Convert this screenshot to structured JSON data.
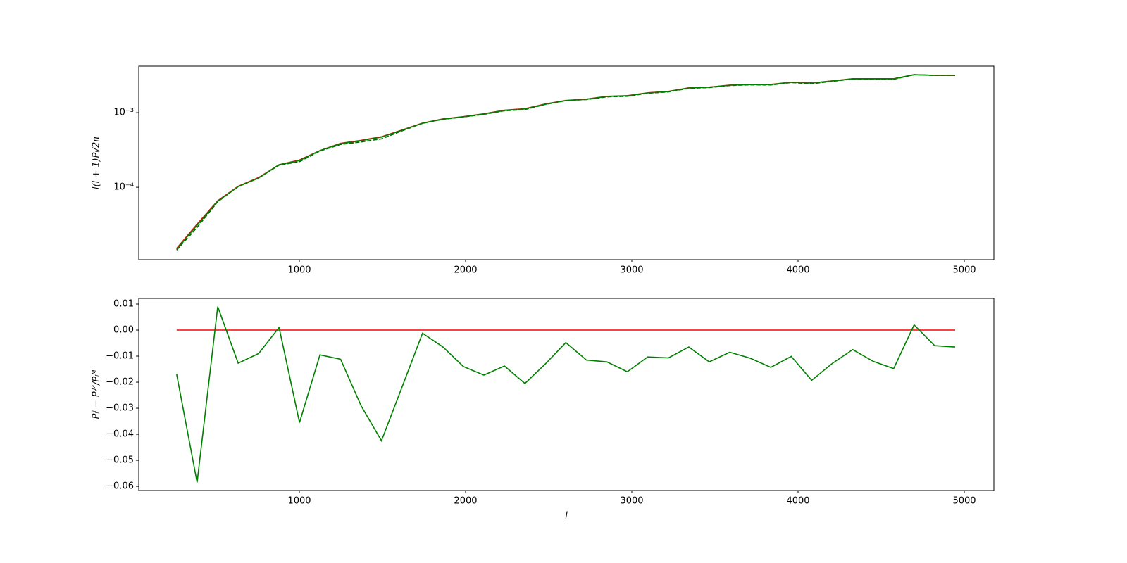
{
  "chart_data": [
    {
      "type": "line",
      "ylabel": "l(l + 1)Pₗ/2π",
      "log_y": true,
      "x": [
        262,
        385,
        509,
        632,
        755,
        878,
        1001,
        1124,
        1248,
        1371,
        1494,
        1617,
        1741,
        1864,
        1987,
        2110,
        2234,
        2357,
        2480,
        2603,
        2727,
        2850,
        2973,
        3096,
        3220,
        3343,
        3466,
        3589,
        3713,
        3836,
        3959,
        4082,
        4206,
        4329,
        4452,
        4575,
        4698,
        4822,
        4945
      ],
      "xlim": [
        34,
        5178
      ],
      "xticks": [
        1000,
        2000,
        3000,
        4000,
        5000
      ],
      "ylim": [
        1.07e-05,
        0.0042
      ],
      "yticks": [
        {
          "value": 0.0001,
          "label": "10⁻⁴"
        },
        {
          "value": 0.001,
          "label": "10⁻³"
        }
      ],
      "series": [
        {
          "color": "#ff0000",
          "linestyle": "solid",
          "values": [
            1.52e-05,
            3.2e-05,
            6.6e-05,
            0.000103,
            0.000135,
            0.0002,
            0.000232,
            0.00031,
            0.000388,
            0.000425,
            0.000475,
            0.000585,
            0.000725,
            0.000825,
            0.000885,
            0.000965,
            0.00108,
            0.00113,
            0.00131,
            0.00146,
            0.00152,
            0.00166,
            0.00169,
            0.00185,
            0.00193,
            0.00215,
            0.0022,
            0.00234,
            0.00239,
            0.00239,
            0.00256,
            0.0025,
            0.00267,
            0.00285,
            0.00285,
            0.00285,
            0.00322,
            0.00317,
            0.00317
          ]
        },
        {
          "color": "#006400",
          "linestyle": "dashed",
          "values": [
            1.44e-05,
            2.9e-05,
            6.4e-05,
            0.000102,
            0.000133,
            0.000198,
            0.00022,
            0.000306,
            0.000375,
            0.000405,
            0.000445,
            0.00057,
            0.00072,
            0.000815,
            0.000875,
            0.00095,
            0.00106,
            0.0011,
            0.00129,
            0.00145,
            0.0015,
            0.00163,
            0.00166,
            0.00182,
            0.0019,
            0.00212,
            0.00217,
            0.00231,
            0.00236,
            0.00235,
            0.00253,
            0.00244,
            0.00263,
            0.00282,
            0.00281,
            0.0028,
            0.00323,
            0.00315,
            0.00315
          ]
        },
        {
          "color": "#008000",
          "linestyle": "solid",
          "values": [
            1.48e-05,
            3.1e-05,
            6.5e-05,
            0.000102,
            0.000133,
            0.0002,
            0.000228,
            0.00031,
            0.000385,
            0.00042,
            0.00047,
            0.00058,
            0.00072,
            0.00082,
            0.00088,
            0.00096,
            0.00107,
            0.00112,
            0.0013,
            0.00145,
            0.00151,
            0.00165,
            0.00168,
            0.00184,
            0.00192,
            0.00214,
            0.00219,
            0.00233,
            0.00238,
            0.00238,
            0.00255,
            0.00249,
            0.00266,
            0.00284,
            0.00284,
            0.00284,
            0.00323,
            0.00316,
            0.00316
          ]
        }
      ]
    },
    {
      "type": "line",
      "ylabel": "Pₗˡ − Pₗᴹ/Pₗᴹ",
      "xlabel": "l",
      "log_y": false,
      "x": [
        262,
        385,
        509,
        632,
        755,
        878,
        1001,
        1124,
        1248,
        1371,
        1494,
        1617,
        1741,
        1864,
        1987,
        2110,
        2234,
        2357,
        2480,
        2603,
        2727,
        2850,
        2973,
        3096,
        3220,
        3343,
        3466,
        3589,
        3713,
        3836,
        3959,
        4082,
        4206,
        4329,
        4452,
        4575,
        4698,
        4822,
        4945
      ],
      "xlim": [
        34,
        5178
      ],
      "xticks": [
        1000,
        2000,
        3000,
        4000,
        5000
      ],
      "ylim": [
        -0.0616,
        0.01216
      ],
      "yticks": [
        {
          "value": 0.01,
          "label": "0.01"
        },
        {
          "value": 0,
          "label": "0.00"
        },
        {
          "value": -0.01,
          "label": "−0.01"
        },
        {
          "value": -0.02,
          "label": "−0.02"
        },
        {
          "value": -0.03,
          "label": "−0.03"
        },
        {
          "value": -0.04,
          "label": "−0.04"
        },
        {
          "value": -0.05,
          "label": "−0.05"
        },
        {
          "value": -0.06,
          "label": "−0.06"
        }
      ],
      "series": [
        {
          "color": "#ff0000",
          "linestyle": "solid",
          "values": [
            0,
            0,
            0,
            0,
            0,
            0,
            0,
            0,
            0,
            0,
            0,
            0,
            0,
            0,
            0,
            0,
            0,
            0,
            0,
            0,
            0,
            0,
            0,
            0,
            0,
            0,
            0,
            0,
            0,
            0,
            0,
            0,
            0,
            0,
            0,
            0,
            0,
            0,
            0
          ]
        },
        {
          "color": "#008000",
          "linestyle": "solid",
          "values": [
            -0.017,
            -0.0585,
            0.009,
            -0.0127,
            -0.009,
            0.001,
            -0.0355,
            -0.0095,
            -0.0112,
            -0.029,
            -0.0425,
            -0.022,
            -0.0012,
            -0.0065,
            -0.014,
            -0.0173,
            -0.0138,
            -0.0205,
            -0.013,
            -0.0048,
            -0.0115,
            -0.0122,
            -0.016,
            -0.0103,
            -0.0107,
            -0.0065,
            -0.0122,
            -0.0085,
            -0.0108,
            -0.0143,
            -0.0101,
            -0.0193,
            -0.0128,
            -0.0075,
            -0.012,
            -0.0148,
            0.002,
            -0.006,
            -0.0065
          ]
        }
      ]
    }
  ]
}
